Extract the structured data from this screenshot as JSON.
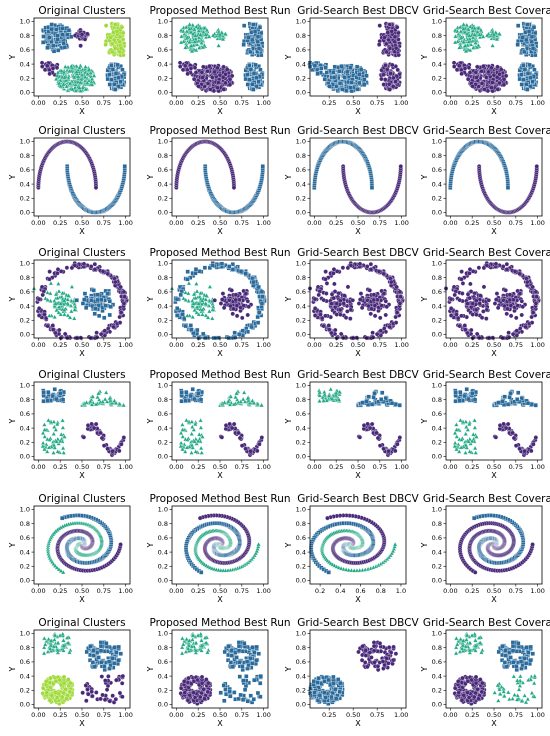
{
  "figure": {
    "columns": [
      "Original Clusters",
      "Proposed Method Best Run",
      "Grid-Search Best DBCV",
      "Grid-Search Best Coverage"
    ],
    "xlabel": "X",
    "ylabel": "Y"
  },
  "colors": {
    "purple": "#482878",
    "blue": "#2a6b9c",
    "teal": "#22a884",
    "green": "#9fda3a",
    "axis": "#000000"
  },
  "chart_data": [
    {
      "type": "scatter",
      "row": 0,
      "col": 0,
      "title": "Original Clusters",
      "xlabel": "X",
      "ylabel": "Y",
      "xlim": [
        -0.05,
        1.05
      ],
      "ylim": [
        -0.05,
        1.05
      ],
      "xticks": [
        "0.00",
        "0.25",
        "0.50",
        "0.75",
        "1.00"
      ],
      "yticks": [
        "0.0",
        "0.2",
        "0.4",
        "0.6",
        "0.8",
        "1.0"
      ],
      "dataset": "blobs",
      "labels": [
        "blue",
        "purple",
        "green",
        "purple",
        "teal",
        "blue"
      ]
    },
    {
      "type": "scatter",
      "row": 0,
      "col": 1,
      "title": "Proposed Method Best Run",
      "xlabel": "X",
      "ylabel": "Y",
      "xlim": [
        -0.05,
        1.05
      ],
      "ylim": [
        -0.05,
        1.05
      ],
      "xticks": [
        "0.00",
        "0.25",
        "0.50",
        "0.75",
        "1.00"
      ],
      "yticks": [
        "0.0",
        "0.2",
        "0.4",
        "0.6",
        "0.8",
        "1.0"
      ],
      "dataset": "blobs",
      "labels": [
        "teal",
        "teal",
        "blue",
        "purple",
        "purple",
        "blue"
      ]
    },
    {
      "type": "scatter",
      "row": 0,
      "col": 2,
      "title": "Grid-Search Best DBCV",
      "xlabel": "X",
      "ylabel": "Y",
      "xlim": [
        0.05,
        1.05
      ],
      "ylim": [
        -0.05,
        1.05
      ],
      "xticks": [
        "0.25",
        "0.50",
        "0.75",
        "1.00"
      ],
      "yticks": [
        "0.0",
        "0.2",
        "0.4",
        "0.6",
        "0.8",
        "1.0"
      ],
      "dataset": "blobs",
      "labels": [
        "none",
        "none",
        "purple",
        "blue",
        "blue",
        "purple"
      ]
    },
    {
      "type": "scatter",
      "row": 0,
      "col": 3,
      "title": "Grid-Search Best Coverage",
      "xlabel": "X",
      "ylabel": "Y",
      "xlim": [
        -0.05,
        1.05
      ],
      "ylim": [
        -0.05,
        1.05
      ],
      "xticks": [
        "0.00",
        "0.25",
        "0.50",
        "0.75",
        "1.00"
      ],
      "yticks": [
        "0.0",
        "0.2",
        "0.4",
        "0.6",
        "0.8",
        "1.0"
      ],
      "dataset": "blobs",
      "labels": [
        "teal",
        "teal",
        "blue",
        "purple",
        "purple",
        "blue"
      ]
    },
    {
      "type": "scatter",
      "row": 1,
      "col": 0,
      "title": "Original Clusters",
      "xlabel": "X",
      "ylabel": "Y",
      "xlim": [
        -0.05,
        1.05
      ],
      "ylim": [
        -0.05,
        1.05
      ],
      "xticks": [
        "0.00",
        "0.25",
        "0.50",
        "0.75",
        "1.00"
      ],
      "yticks": [
        "0.0",
        "0.2",
        "0.4",
        "0.6",
        "0.8",
        "1.0"
      ],
      "dataset": "moons",
      "labels": [
        "purple",
        "blue"
      ]
    },
    {
      "type": "scatter",
      "row": 1,
      "col": 1,
      "title": "Proposed Method Best Run",
      "xlabel": "X",
      "ylabel": "Y",
      "xlim": [
        -0.05,
        1.05
      ],
      "ylim": [
        -0.05,
        1.05
      ],
      "xticks": [
        "0.00",
        "0.25",
        "0.50",
        "0.75",
        "1.00"
      ],
      "yticks": [
        "0.0",
        "0.2",
        "0.4",
        "0.6",
        "0.8",
        "1.0"
      ],
      "dataset": "moons",
      "labels": [
        "purple",
        "blue"
      ]
    },
    {
      "type": "scatter",
      "row": 1,
      "col": 2,
      "title": "Grid-Search Best DBCV",
      "xlabel": "X",
      "ylabel": "Y",
      "xlim": [
        -0.05,
        1.05
      ],
      "ylim": [
        -0.05,
        1.05
      ],
      "xticks": [
        "0.00",
        "0.25",
        "0.50",
        "0.75",
        "1.00"
      ],
      "yticks": [
        "0.0",
        "0.2",
        "0.4",
        "0.6",
        "0.8",
        "1.0"
      ],
      "dataset": "moons",
      "labels": [
        "blue",
        "purple"
      ]
    },
    {
      "type": "scatter",
      "row": 1,
      "col": 3,
      "title": "Grid-Search Best Coverage",
      "xlabel": "X",
      "ylabel": "Y",
      "xlim": [
        -0.05,
        1.05
      ],
      "ylim": [
        -0.05,
        1.05
      ],
      "xticks": [
        "0.00",
        "0.25",
        "0.50",
        "0.75",
        "1.00"
      ],
      "yticks": [
        "0.0",
        "0.2",
        "0.4",
        "0.6",
        "0.8",
        "1.0"
      ],
      "dataset": "moons",
      "labels": [
        "blue",
        "purple"
      ]
    },
    {
      "type": "scatter",
      "row": 2,
      "col": 0,
      "title": "Original Clusters",
      "xlabel": "X",
      "ylabel": "Y",
      "xlim": [
        -0.05,
        1.05
      ],
      "ylim": [
        -0.05,
        1.05
      ],
      "xticks": [
        "0.00",
        "0.25",
        "0.50",
        "0.75",
        "1.00"
      ],
      "yticks": [
        "0.0",
        "0.2",
        "0.4",
        "0.6",
        "0.8",
        "1.0"
      ],
      "dataset": "circles",
      "labels": [
        "purple",
        "teal",
        "blue"
      ]
    },
    {
      "type": "scatter",
      "row": 2,
      "col": 1,
      "title": "Proposed Method Best Run",
      "xlabel": "X",
      "ylabel": "Y",
      "xlim": [
        -0.05,
        1.05
      ],
      "ylim": [
        -0.05,
        1.05
      ],
      "xticks": [
        "0.00",
        "0.25",
        "0.50",
        "0.75",
        "1.00"
      ],
      "yticks": [
        "0.0",
        "0.2",
        "0.4",
        "0.6",
        "0.8",
        "1.0"
      ],
      "dataset": "circles",
      "labels": [
        "blue",
        "teal",
        "purple"
      ]
    },
    {
      "type": "scatter",
      "row": 2,
      "col": 2,
      "title": "Grid-Search Best DBCV",
      "xlabel": "X",
      "ylabel": "Y",
      "xlim": [
        -0.05,
        1.05
      ],
      "ylim": [
        -0.05,
        1.05
      ],
      "xticks": [
        "0.00",
        "0.25",
        "0.50",
        "0.75",
        "1.00"
      ],
      "yticks": [
        "0.0",
        "0.2",
        "0.4",
        "0.6",
        "0.8",
        "1.0"
      ],
      "dataset": "circles",
      "labels": [
        "purple",
        "purple",
        "purple"
      ]
    },
    {
      "type": "scatter",
      "row": 2,
      "col": 3,
      "title": "Grid-Search Best Coverage",
      "xlabel": "X",
      "ylabel": "Y",
      "xlim": [
        -0.05,
        1.05
      ],
      "ylim": [
        -0.05,
        1.05
      ],
      "xticks": [
        "0.00",
        "0.25",
        "0.50",
        "0.75",
        "1.00"
      ],
      "yticks": [
        "0.0",
        "0.2",
        "0.4",
        "0.6",
        "0.8",
        "1.0"
      ],
      "dataset": "circles",
      "labels": [
        "purple",
        "purple",
        "purple"
      ]
    },
    {
      "type": "scatter",
      "row": 3,
      "col": 0,
      "title": "Original Clusters",
      "xlabel": "X",
      "ylabel": "Y",
      "xlim": [
        -0.05,
        1.05
      ],
      "ylim": [
        -0.05,
        1.05
      ],
      "xticks": [
        "0.00",
        "0.25",
        "0.50",
        "0.75",
        "1.00"
      ],
      "yticks": [
        "0.0",
        "0.2",
        "0.4",
        "0.6",
        "0.8",
        "1.0"
      ],
      "dataset": "mixed",
      "labels": [
        "blue",
        "teal",
        "teal",
        "purple"
      ]
    },
    {
      "type": "scatter",
      "row": 3,
      "col": 1,
      "title": "Proposed Method Best Run",
      "xlabel": "X",
      "ylabel": "Y",
      "xlim": [
        -0.05,
        1.05
      ],
      "ylim": [
        -0.05,
        1.05
      ],
      "xticks": [
        "0.00",
        "0.25",
        "0.50",
        "0.75",
        "1.00"
      ],
      "yticks": [
        "0.0",
        "0.2",
        "0.4",
        "0.6",
        "0.8",
        "1.0"
      ],
      "dataset": "mixed",
      "labels": [
        "blue",
        "teal",
        "teal",
        "purple"
      ]
    },
    {
      "type": "scatter",
      "row": 3,
      "col": 2,
      "title": "Grid-Search Best DBCV",
      "xlabel": "X",
      "ylabel": "Y",
      "xlim": [
        -0.05,
        1.05
      ],
      "ylim": [
        -0.05,
        1.05
      ],
      "xticks": [
        "0.00",
        "0.25",
        "0.50",
        "0.75",
        "1.00"
      ],
      "yticks": [
        "0.0",
        "0.2",
        "0.4",
        "0.6",
        "0.8",
        "1.0"
      ],
      "dataset": "mixed",
      "labels": [
        "teal",
        "blue",
        "none",
        "purple"
      ]
    },
    {
      "type": "scatter",
      "row": 3,
      "col": 3,
      "title": "Grid-Search Best Coverage",
      "xlabel": "X",
      "ylabel": "Y",
      "xlim": [
        -0.05,
        1.05
      ],
      "ylim": [
        -0.05,
        1.05
      ],
      "xticks": [
        "0.00",
        "0.25",
        "0.50",
        "0.75",
        "1.00"
      ],
      "yticks": [
        "0.0",
        "0.2",
        "0.4",
        "0.6",
        "0.8",
        "1.0"
      ],
      "dataset": "mixed",
      "labels": [
        "blue",
        "blue",
        "teal",
        "purple"
      ]
    },
    {
      "type": "scatter",
      "row": 4,
      "col": 0,
      "title": "Original Clusters",
      "xlabel": "X",
      "ylabel": "Y",
      "xlim": [
        -0.05,
        1.05
      ],
      "ylim": [
        -0.05,
        1.05
      ],
      "xticks": [
        "0.00",
        "0.25",
        "0.50",
        "0.75",
        "1.00"
      ],
      "yticks": [
        "0.0",
        "0.2",
        "0.4",
        "0.6",
        "0.8",
        "1.0"
      ],
      "dataset": "spirals",
      "labels": [
        "blue",
        "teal",
        "purple"
      ]
    },
    {
      "type": "scatter",
      "row": 4,
      "col": 1,
      "title": "Proposed Method Best Run",
      "xlabel": "X",
      "ylabel": "Y",
      "xlim": [
        -0.05,
        1.05
      ],
      "ylim": [
        -0.05,
        1.05
      ],
      "xticks": [
        "0.00",
        "0.25",
        "0.50",
        "0.75",
        "1.00"
      ],
      "yticks": [
        "0.0",
        "0.2",
        "0.4",
        "0.6",
        "0.8",
        "1.0"
      ],
      "dataset": "spirals",
      "labels": [
        "purple",
        "blue",
        "teal"
      ]
    },
    {
      "type": "scatter",
      "row": 4,
      "col": 2,
      "title": "Grid-Search Best DBCV",
      "xlabel": "X",
      "ylabel": "Y",
      "xlim": [
        0.1,
        1.05
      ],
      "ylim": [
        -0.05,
        1.05
      ],
      "xticks": [
        "0.2",
        "0.4",
        "0.6",
        "0.8",
        "1.0"
      ],
      "yticks": [
        "0.0",
        "0.2",
        "0.4",
        "0.6",
        "0.8",
        "1.0"
      ],
      "dataset": "spirals",
      "labels": [
        "purple",
        "blue",
        "teal"
      ]
    },
    {
      "type": "scatter",
      "row": 4,
      "col": 3,
      "title": "Grid-Search Best Coverage",
      "xlabel": "X",
      "ylabel": "Y",
      "xlim": [
        -0.05,
        1.05
      ],
      "ylim": [
        -0.05,
        1.05
      ],
      "xticks": [
        "0.00",
        "0.25",
        "0.50",
        "0.75",
        "1.00"
      ],
      "yticks": [
        "0.0",
        "0.2",
        "0.4",
        "0.6",
        "0.8",
        "1.0"
      ],
      "dataset": "spirals",
      "labels": [
        "blue",
        "purple",
        "purple"
      ]
    },
    {
      "type": "scatter",
      "row": 5,
      "col": 0,
      "title": "Original Clusters",
      "xlabel": "X",
      "ylabel": "Y",
      "xlim": [
        -0.05,
        1.05
      ],
      "ylim": [
        -0.05,
        1.05
      ],
      "xticks": [
        "0.00",
        "0.25",
        "0.50",
        "0.75",
        "1.00"
      ],
      "yticks": [
        "0.0",
        "0.2",
        "0.4",
        "0.6",
        "0.8",
        "1.0"
      ],
      "dataset": "complex",
      "labels": [
        "teal",
        "blue",
        "green",
        "purple"
      ]
    },
    {
      "type": "scatter",
      "row": 5,
      "col": 1,
      "title": "Proposed Method Best Run",
      "xlabel": "X",
      "ylabel": "Y",
      "xlim": [
        -0.05,
        1.05
      ],
      "ylim": [
        -0.05,
        1.05
      ],
      "xticks": [
        "0.00",
        "0.25",
        "0.50",
        "0.75",
        "1.00"
      ],
      "yticks": [
        "0.0",
        "0.2",
        "0.4",
        "0.6",
        "0.8",
        "1.0"
      ],
      "dataset": "complex",
      "labels": [
        "teal",
        "blue",
        "purple",
        "blue"
      ]
    },
    {
      "type": "scatter",
      "row": 5,
      "col": 2,
      "title": "Grid-Search Best DBCV",
      "xlabel": "X",
      "ylabel": "Y",
      "xlim": [
        0.05,
        1.05
      ],
      "ylim": [
        -0.05,
        1.05
      ],
      "xticks": [
        "0.25",
        "0.50",
        "0.75",
        "1.00"
      ],
      "yticks": [
        "0.0",
        "0.2",
        "0.4",
        "0.6",
        "0.8",
        "1.0"
      ],
      "dataset": "complex",
      "labels": [
        "none",
        "purple",
        "blue",
        "none"
      ]
    },
    {
      "type": "scatter",
      "row": 5,
      "col": 3,
      "title": "Grid-Search Best Coverage",
      "xlabel": "X",
      "ylabel": "Y",
      "xlim": [
        -0.05,
        1.05
      ],
      "ylim": [
        -0.05,
        1.05
      ],
      "xticks": [
        "0.00",
        "0.25",
        "0.50",
        "0.75",
        "1.00"
      ],
      "yticks": [
        "0.0",
        "0.2",
        "0.4",
        "0.6",
        "0.8",
        "1.0"
      ],
      "dataset": "complex",
      "labels": [
        "teal",
        "blue",
        "purple",
        "teal"
      ]
    }
  ]
}
